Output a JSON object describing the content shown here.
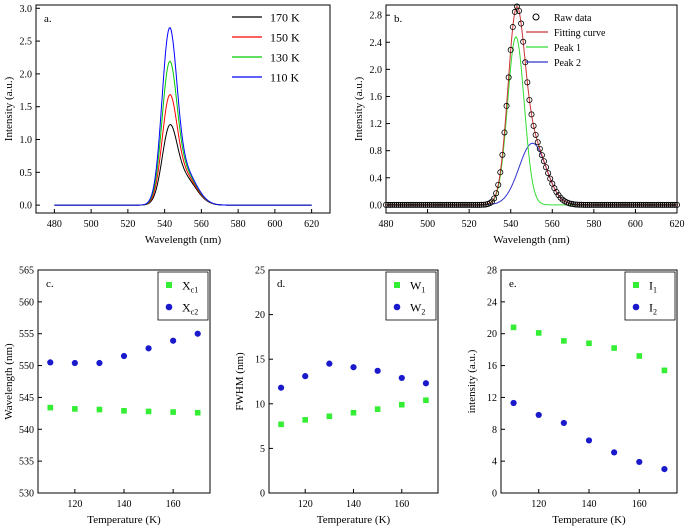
{
  "chart_data": [
    {
      "id": "a",
      "type": "line",
      "panel_label": "a.",
      "xlabel": "Wavelength (nm)",
      "ylabel": "Intensity (a.u.)",
      "xlim": [
        470,
        630
      ],
      "ylim": [
        -0.12,
        3.05
      ],
      "xticks": [
        480,
        500,
        520,
        540,
        560,
        580,
        600,
        620
      ],
      "yticks": [
        0.0,
        0.5,
        1.0,
        1.5,
        2.0,
        2.5,
        3.0
      ],
      "ytick_labels": [
        "0.0",
        "0.5",
        "1.0",
        "1.5",
        "2.0",
        "2.5",
        "3.0"
      ],
      "legend_position": "top-right",
      "series": [
        {
          "name": "170 K",
          "color": "#000000",
          "amp1": 1.02,
          "amp2": 0.42
        },
        {
          "name": "150 K",
          "color": "#ff0000",
          "amp1": 1.46,
          "amp2": 0.46
        },
        {
          "name": "130 K",
          "color": "#00cc00",
          "amp1": 1.95,
          "amp2": 0.5
        },
        {
          "name": "110 K",
          "color": "#0000ff",
          "amp1": 2.45,
          "amp2": 0.53
        }
      ],
      "peak_center_1": 542.5,
      "peak_sigma_1": 4.0,
      "peak_center_2": 550.5,
      "peak_sigma_2": 6.5
    },
    {
      "id": "b",
      "type": "line",
      "panel_label": "b.",
      "xlabel": "Wavelength (nm)",
      "ylabel": "Intensity (a.u.)",
      "xlim": [
        480,
        620
      ],
      "ylim": [
        -0.12,
        2.95
      ],
      "xticks": [
        480,
        500,
        520,
        540,
        560,
        580,
        600,
        620
      ],
      "yticks": [
        0.0,
        0.4,
        0.8,
        1.2,
        1.6,
        2.0,
        2.4,
        2.8
      ],
      "ytick_labels": [
        "0.0",
        "0.4",
        "0.8",
        "1.2",
        "1.6",
        "2.0",
        "2.4",
        "2.8"
      ],
      "legend_position": "top-right",
      "legend": [
        "Raw data",
        "Fitting curve",
        "Peak 1",
        "Peak 2"
      ],
      "peak1": {
        "name": "Peak 1",
        "color": "#33dd33",
        "amp": 2.48,
        "center": 542.5,
        "sigma": 4.0
      },
      "peak2": {
        "name": "Peak 2",
        "color": "#3333cc",
        "amp": 0.91,
        "center": 550.5,
        "sigma": 6.5
      },
      "fit": {
        "name": "Fitting curve",
        "color": "#cc3333"
      },
      "raw": {
        "name": "Raw data",
        "color": "#000000"
      }
    },
    {
      "id": "c",
      "type": "scatter",
      "panel_label": "c.",
      "xlabel": "Temperature (K)",
      "ylabel": "Wavelength (nm)",
      "xlim": [
        105,
        175
      ],
      "ylim": [
        530,
        565
      ],
      "xticks": [
        120,
        140,
        160
      ],
      "yticks": [
        530,
        535,
        540,
        545,
        550,
        555,
        560,
        565
      ],
      "ytick_labels": [
        "530",
        "535",
        "540",
        "545",
        "550",
        "555",
        "560",
        "565"
      ],
      "legend_position": "top-right",
      "x": [
        110,
        120,
        130,
        140,
        150,
        160,
        170
      ],
      "series": [
        {
          "name": "X",
          "sub": "c1",
          "marker": "square",
          "color": "#33ee33",
          "values": [
            543.4,
            543.2,
            543.1,
            542.9,
            542.8,
            542.7,
            542.6
          ]
        },
        {
          "name": "X",
          "sub": "c2",
          "marker": "circle",
          "color": "#1a1acc",
          "values": [
            550.5,
            550.4,
            550.4,
            551.5,
            552.7,
            553.9,
            555.0
          ]
        }
      ]
    },
    {
      "id": "d",
      "type": "scatter",
      "panel_label": "d.",
      "xlabel": "Temperature (K)",
      "ylabel": "FWHM (nm)",
      "xlim": [
        105,
        175
      ],
      "ylim": [
        0,
        25
      ],
      "xticks": [
        120,
        140,
        160
      ],
      "yticks": [
        0,
        5,
        10,
        15,
        20,
        25
      ],
      "ytick_labels": [
        "0",
        "5",
        "10",
        "15",
        "20",
        "25"
      ],
      "legend_position": "top-right",
      "x": [
        110,
        120,
        130,
        140,
        150,
        160,
        170
      ],
      "series": [
        {
          "name": "W",
          "sub": "1",
          "marker": "square",
          "color": "#33ee33",
          "values": [
            7.7,
            8.2,
            8.6,
            9.0,
            9.4,
            9.9,
            10.4
          ]
        },
        {
          "name": "W",
          "sub": "2",
          "marker": "circle",
          "color": "#1a1acc",
          "values": [
            11.8,
            13.1,
            14.5,
            14.1,
            13.7,
            12.9,
            12.3
          ]
        }
      ]
    },
    {
      "id": "e",
      "type": "scatter",
      "panel_label": "e.",
      "xlabel": "Temperature (K)",
      "ylabel": "intensity (a.u.)",
      "xlim": [
        105,
        175
      ],
      "ylim": [
        0,
        28
      ],
      "xticks": [
        120,
        140,
        160
      ],
      "yticks": [
        0,
        4,
        8,
        12,
        16,
        20,
        24,
        28
      ],
      "ytick_labels": [
        "0",
        "4",
        "8",
        "12",
        "16",
        "20",
        "24",
        "28"
      ],
      "legend_position": "top-right",
      "x": [
        110,
        120,
        130,
        140,
        150,
        160,
        170
      ],
      "series": [
        {
          "name": "I",
          "sub": "1",
          "marker": "square",
          "color": "#33ee33",
          "values": [
            20.8,
            20.1,
            19.1,
            18.8,
            18.2,
            17.2,
            15.4
          ]
        },
        {
          "name": "I",
          "sub": "2",
          "marker": "circle",
          "color": "#1a1acc",
          "values": [
            11.3,
            9.8,
            8.8,
            6.6,
            5.1,
            3.9,
            3.0
          ]
        }
      ]
    }
  ]
}
